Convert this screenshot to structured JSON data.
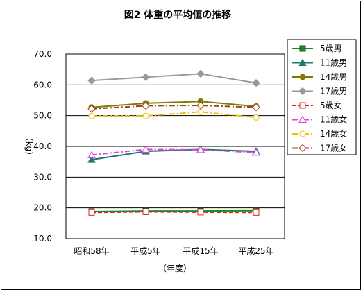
{
  "chart_data": {
    "type": "line",
    "title": "図2 体重の平均値の推移",
    "xlabel": "（年度）",
    "ylabel": "（kg）",
    "categories": [
      "昭和58年",
      "平成5年",
      "平成15年",
      "平成25年"
    ],
    "ylim": [
      10.0,
      70.0
    ],
    "yticks": [
      "10.0",
      "20.0",
      "30.0",
      "40.0",
      "50.0",
      "60.0",
      "70.0"
    ],
    "grid": true,
    "legend": "right",
    "series": [
      {
        "name": "5歳男",
        "values": [
          18.8,
          19.0,
          19.0,
          19.1
        ],
        "color": "#1a8c1a",
        "dash": "solid",
        "marker": "square-filled"
      },
      {
        "name": "11歳男",
        "values": [
          35.7,
          38.4,
          39.0,
          38.4
        ],
        "color": "#1f7a6a",
        "dash": "solid",
        "marker": "triangle-filled"
      },
      {
        "name": "14歳男",
        "values": [
          52.7,
          54.0,
          54.6,
          53.0
        ],
        "color": "#807a00",
        "dash": "solid",
        "marker": "circle-filled"
      },
      {
        "name": "17歳男",
        "values": [
          61.4,
          62.5,
          63.6,
          60.6
        ],
        "color": "#999999",
        "dash": "solid",
        "marker": "diamond-filled"
      },
      {
        "name": "5歳女",
        "values": [
          18.5,
          18.7,
          18.6,
          18.5
        ],
        "color": "#e02020",
        "dash": "dash",
        "marker": "square-open"
      },
      {
        "name": "11歳女",
        "values": [
          37.2,
          39.0,
          38.9,
          38.0
        ],
        "color": "#e040e0",
        "dash": "dashdot",
        "marker": "triangle-open"
      },
      {
        "name": "14歳女",
        "values": [
          49.9,
          49.9,
          51.2,
          49.4
        ],
        "color": "#f0c000",
        "dash": "dashdot",
        "marker": "circle-open"
      },
      {
        "name": "17歳女",
        "values": [
          52.2,
          53.2,
          53.3,
          52.7
        ],
        "color": "#a04020",
        "dash": "dashdot",
        "marker": "diamond-open"
      }
    ]
  }
}
